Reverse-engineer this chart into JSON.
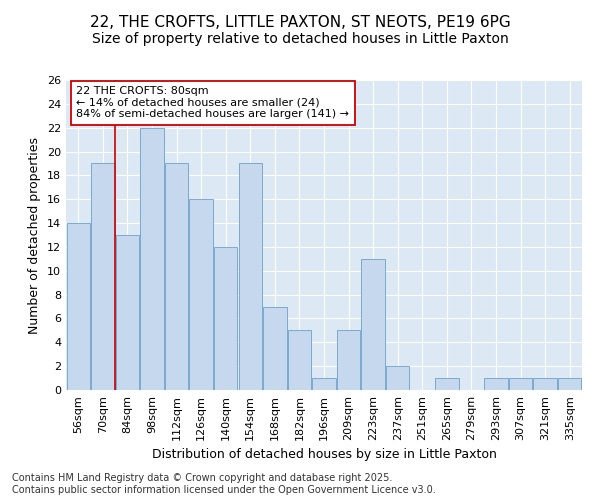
{
  "title1": "22, THE CROFTS, LITTLE PAXTON, ST NEOTS, PE19 6PG",
  "title2": "Size of property relative to detached houses in Little Paxton",
  "xlabel": "Distribution of detached houses by size in Little Paxton",
  "ylabel": "Number of detached properties",
  "categories": [
    "56sqm",
    "70sqm",
    "84sqm",
    "98sqm",
    "112sqm",
    "126sqm",
    "140sqm",
    "154sqm",
    "168sqm",
    "182sqm",
    "196sqm",
    "209sqm",
    "223sqm",
    "237sqm",
    "251sqm",
    "265sqm",
    "279sqm",
    "293sqm",
    "307sqm",
    "321sqm",
    "335sqm"
  ],
  "values": [
    14,
    19,
    13,
    22,
    19,
    16,
    12,
    19,
    7,
    5,
    1,
    5,
    11,
    2,
    0,
    1,
    0,
    1,
    1,
    1,
    1
  ],
  "bar_color": "#c5d8ee",
  "bar_edgecolor": "#7aaace",
  "bar_linewidth": 0.7,
  "vline_color": "#cc0000",
  "vline_x": 2.0,
  "annotation_text": "22 THE CROFTS: 80sqm\n← 14% of detached houses are smaller (24)\n84% of semi-detached houses are larger (141) →",
  "annotation_box_edgecolor": "#cc0000",
  "annotation_box_facecolor": "#ffffff",
  "ylim": [
    0,
    26
  ],
  "yticks": [
    0,
    2,
    4,
    6,
    8,
    10,
    12,
    14,
    16,
    18,
    20,
    22,
    24,
    26
  ],
  "footer_text": "Contains HM Land Registry data © Crown copyright and database right 2025.\nContains public sector information licensed under the Open Government Licence v3.0.",
  "background_color": "#ffffff",
  "plot_background_color": "#dce9f5",
  "grid_color": "#ffffff",
  "title_fontsize": 11,
  "subtitle_fontsize": 10,
  "axis_label_fontsize": 9,
  "tick_fontsize": 8,
  "annotation_fontsize": 8,
  "footer_fontsize": 7
}
